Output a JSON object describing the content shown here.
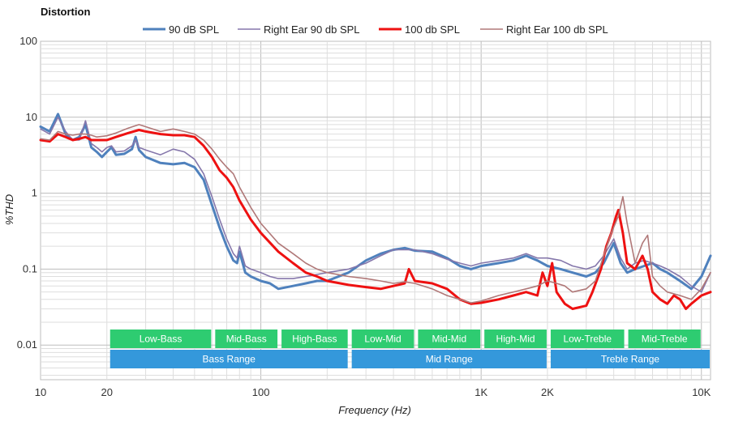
{
  "chart_data": {
    "type": "line",
    "title": "Distortion",
    "xlabel": "Frequency (Hz)",
    "ylabel": "%THD",
    "xscale": "log",
    "yscale": "log",
    "xlim": [
      10,
      11000
    ],
    "ylim": [
      0.0035,
      100
    ],
    "x_ticks": [
      {
        "value": 10,
        "label": "10"
      },
      {
        "value": 20,
        "label": "20"
      },
      {
        "value": 100,
        "label": "100"
      },
      {
        "value": 1000,
        "label": "1K"
      },
      {
        "value": 2000,
        "label": "2K"
      },
      {
        "value": 10000,
        "label": "10K"
      }
    ],
    "y_ticks": [
      {
        "value": 100,
        "label": "100"
      },
      {
        "value": 10,
        "label": "10"
      },
      {
        "value": 1,
        "label": "1"
      },
      {
        "value": 0.1,
        "label": "0.1"
      },
      {
        "value": 0.01,
        "label": "0.01"
      }
    ],
    "grid": true,
    "legend_position": "top-center",
    "series": [
      {
        "name": "90 dB SPL",
        "color": "#4f81bd",
        "width": 3,
        "points": [
          [
            10,
            7.5
          ],
          [
            11,
            6.5
          ],
          [
            12,
            11
          ],
          [
            13,
            6
          ],
          [
            14,
            5
          ],
          [
            15,
            5.5
          ],
          [
            16,
            8
          ],
          [
            17,
            4
          ],
          [
            18,
            3.5
          ],
          [
            19,
            3
          ],
          [
            20,
            3.5
          ],
          [
            21,
            4
          ],
          [
            22,
            3.2
          ],
          [
            24,
            3.3
          ],
          [
            26,
            3.8
          ],
          [
            27,
            5.5
          ],
          [
            28,
            3.7
          ],
          [
            30,
            3.0
          ],
          [
            35,
            2.5
          ],
          [
            40,
            2.4
          ],
          [
            45,
            2.5
          ],
          [
            50,
            2.2
          ],
          [
            55,
            1.5
          ],
          [
            60,
            0.7
          ],
          [
            65,
            0.35
          ],
          [
            70,
            0.2
          ],
          [
            75,
            0.13
          ],
          [
            78,
            0.12
          ],
          [
            80,
            0.17
          ],
          [
            85,
            0.09
          ],
          [
            90,
            0.08
          ],
          [
            100,
            0.07
          ],
          [
            110,
            0.065
          ],
          [
            120,
            0.055
          ],
          [
            140,
            0.06
          ],
          [
            160,
            0.065
          ],
          [
            180,
            0.07
          ],
          [
            200,
            0.07
          ],
          [
            250,
            0.09
          ],
          [
            300,
            0.13
          ],
          [
            350,
            0.16
          ],
          [
            400,
            0.18
          ],
          [
            450,
            0.19
          ],
          [
            500,
            0.175
          ],
          [
            600,
            0.17
          ],
          [
            700,
            0.14
          ],
          [
            800,
            0.11
          ],
          [
            900,
            0.1
          ],
          [
            1000,
            0.11
          ],
          [
            1200,
            0.12
          ],
          [
            1400,
            0.13
          ],
          [
            1600,
            0.15
          ],
          [
            1800,
            0.13
          ],
          [
            2000,
            0.11
          ],
          [
            2300,
            0.1
          ],
          [
            2600,
            0.09
          ],
          [
            3000,
            0.08
          ],
          [
            3300,
            0.09
          ],
          [
            3600,
            0.12
          ],
          [
            4000,
            0.22
          ],
          [
            4300,
            0.12
          ],
          [
            4600,
            0.09
          ],
          [
            5000,
            0.1
          ],
          [
            5500,
            0.11
          ],
          [
            6000,
            0.12
          ],
          [
            6500,
            0.1
          ],
          [
            7000,
            0.09
          ],
          [
            8000,
            0.07
          ],
          [
            9000,
            0.055
          ],
          [
            10000,
            0.08
          ],
          [
            11000,
            0.15
          ]
        ]
      },
      {
        "name": "Right Ear 90 db SPL",
        "color": "#8577ab",
        "width": 1.6,
        "points": [
          [
            10,
            7
          ],
          [
            11,
            6
          ],
          [
            12,
            10
          ],
          [
            13,
            6.5
          ],
          [
            14,
            5
          ],
          [
            15,
            5
          ],
          [
            16,
            9
          ],
          [
            17,
            4.5
          ],
          [
            18,
            4
          ],
          [
            19,
            3.5
          ],
          [
            20,
            4
          ],
          [
            21,
            4.2
          ],
          [
            22,
            3.5
          ],
          [
            24,
            3.6
          ],
          [
            26,
            4.2
          ],
          [
            27,
            5
          ],
          [
            28,
            4
          ],
          [
            30,
            3.7
          ],
          [
            35,
            3.2
          ],
          [
            40,
            3.8
          ],
          [
            45,
            3.5
          ],
          [
            50,
            2.8
          ],
          [
            55,
            1.8
          ],
          [
            60,
            0.9
          ],
          [
            65,
            0.45
          ],
          [
            70,
            0.25
          ],
          [
            75,
            0.16
          ],
          [
            78,
            0.14
          ],
          [
            80,
            0.2
          ],
          [
            85,
            0.11
          ],
          [
            90,
            0.1
          ],
          [
            100,
            0.09
          ],
          [
            110,
            0.08
          ],
          [
            120,
            0.075
          ],
          [
            140,
            0.075
          ],
          [
            160,
            0.08
          ],
          [
            180,
            0.085
          ],
          [
            200,
            0.09
          ],
          [
            250,
            0.1
          ],
          [
            300,
            0.12
          ],
          [
            350,
            0.15
          ],
          [
            400,
            0.18
          ],
          [
            450,
            0.18
          ],
          [
            500,
            0.18
          ],
          [
            600,
            0.16
          ],
          [
            700,
            0.135
          ],
          [
            800,
            0.12
          ],
          [
            900,
            0.11
          ],
          [
            1000,
            0.12
          ],
          [
            1200,
            0.13
          ],
          [
            1400,
            0.14
          ],
          [
            1600,
            0.16
          ],
          [
            1800,
            0.14
          ],
          [
            2000,
            0.14
          ],
          [
            2300,
            0.13
          ],
          [
            2600,
            0.11
          ],
          [
            3000,
            0.1
          ],
          [
            3300,
            0.11
          ],
          [
            3600,
            0.15
          ],
          [
            4000,
            0.25
          ],
          [
            4300,
            0.14
          ],
          [
            4600,
            0.1
          ],
          [
            5000,
            0.12
          ],
          [
            5500,
            0.13
          ],
          [
            6000,
            0.12
          ],
          [
            6500,
            0.11
          ],
          [
            7000,
            0.1
          ],
          [
            8000,
            0.08
          ],
          [
            9000,
            0.06
          ],
          [
            10000,
            0.05
          ],
          [
            11000,
            0.09
          ]
        ]
      },
      {
        "name": "100 db SPL",
        "color": "#ee1111",
        "width": 3,
        "points": [
          [
            10,
            5
          ],
          [
            11,
            4.8
          ],
          [
            12,
            6
          ],
          [
            13,
            5.5
          ],
          [
            14,
            5
          ],
          [
            15,
            5.2
          ],
          [
            16,
            5.5
          ],
          [
            17,
            5
          ],
          [
            18,
            5
          ],
          [
            20,
            5
          ],
          [
            22,
            5.5
          ],
          [
            25,
            6.2
          ],
          [
            28,
            6.8
          ],
          [
            30,
            6.5
          ],
          [
            35,
            6.0
          ],
          [
            40,
            5.8
          ],
          [
            45,
            5.8
          ],
          [
            50,
            5.5
          ],
          [
            55,
            4.2
          ],
          [
            60,
            3.0
          ],
          [
            65,
            2.0
          ],
          [
            70,
            1.6
          ],
          [
            75,
            1.2
          ],
          [
            80,
            0.8
          ],
          [
            90,
            0.45
          ],
          [
            100,
            0.3
          ],
          [
            120,
            0.17
          ],
          [
            140,
            0.12
          ],
          [
            160,
            0.09
          ],
          [
            180,
            0.08
          ],
          [
            200,
            0.07
          ],
          [
            250,
            0.062
          ],
          [
            300,
            0.058
          ],
          [
            350,
            0.055
          ],
          [
            400,
            0.06
          ],
          [
            450,
            0.065
          ],
          [
            470,
            0.1
          ],
          [
            500,
            0.07
          ],
          [
            600,
            0.065
          ],
          [
            700,
            0.055
          ],
          [
            800,
            0.04
          ],
          [
            900,
            0.035
          ],
          [
            1000,
            0.036
          ],
          [
            1200,
            0.04
          ],
          [
            1400,
            0.045
          ],
          [
            1600,
            0.05
          ],
          [
            1800,
            0.045
          ],
          [
            1900,
            0.09
          ],
          [
            2000,
            0.06
          ],
          [
            2100,
            0.12
          ],
          [
            2200,
            0.05
          ],
          [
            2400,
            0.035
          ],
          [
            2600,
            0.03
          ],
          [
            3000,
            0.033
          ],
          [
            3200,
            0.05
          ],
          [
            3500,
            0.1
          ],
          [
            3700,
            0.2
          ],
          [
            3900,
            0.3
          ],
          [
            4100,
            0.5
          ],
          [
            4200,
            0.6
          ],
          [
            4400,
            0.3
          ],
          [
            4600,
            0.12
          ],
          [
            5000,
            0.1
          ],
          [
            5400,
            0.15
          ],
          [
            5700,
            0.1
          ],
          [
            6000,
            0.05
          ],
          [
            6500,
            0.04
          ],
          [
            7000,
            0.035
          ],
          [
            7500,
            0.045
          ],
          [
            8000,
            0.04
          ],
          [
            8500,
            0.03
          ],
          [
            9000,
            0.035
          ],
          [
            10000,
            0.045
          ],
          [
            11000,
            0.05
          ]
        ]
      },
      {
        "name": "Right Ear 100 db SPL",
        "color": "#b07878",
        "width": 1.6,
        "points": [
          [
            10,
            5.2
          ],
          [
            11,
            5
          ],
          [
            12,
            6.5
          ],
          [
            13,
            6
          ],
          [
            14,
            5.8
          ],
          [
            15,
            6
          ],
          [
            16,
            6
          ],
          [
            17,
            5.8
          ],
          [
            18,
            5.5
          ],
          [
            20,
            5.7
          ],
          [
            22,
            6.2
          ],
          [
            25,
            7.2
          ],
          [
            28,
            8
          ],
          [
            30,
            7.5
          ],
          [
            35,
            6.5
          ],
          [
            40,
            7.0
          ],
          [
            45,
            6.5
          ],
          [
            50,
            6.0
          ],
          [
            55,
            5.0
          ],
          [
            60,
            3.8
          ],
          [
            65,
            2.8
          ],
          [
            70,
            2.2
          ],
          [
            75,
            1.8
          ],
          [
            80,
            1.2
          ],
          [
            90,
            0.65
          ],
          [
            100,
            0.4
          ],
          [
            120,
            0.22
          ],
          [
            140,
            0.16
          ],
          [
            160,
            0.12
          ],
          [
            180,
            0.1
          ],
          [
            200,
            0.09
          ],
          [
            250,
            0.08
          ],
          [
            300,
            0.075
          ],
          [
            350,
            0.07
          ],
          [
            400,
            0.065
          ],
          [
            450,
            0.068
          ],
          [
            500,
            0.065
          ],
          [
            600,
            0.055
          ],
          [
            700,
            0.045
          ],
          [
            800,
            0.04
          ],
          [
            900,
            0.036
          ],
          [
            1000,
            0.038
          ],
          [
            1200,
            0.045
          ],
          [
            1400,
            0.05
          ],
          [
            1600,
            0.055
          ],
          [
            1800,
            0.06
          ],
          [
            2000,
            0.07
          ],
          [
            2200,
            0.065
          ],
          [
            2400,
            0.06
          ],
          [
            2600,
            0.05
          ],
          [
            3000,
            0.055
          ],
          [
            3300,
            0.07
          ],
          [
            3600,
            0.15
          ],
          [
            3900,
            0.3
          ],
          [
            4200,
            0.5
          ],
          [
            4400,
            0.9
          ],
          [
            4600,
            0.4
          ],
          [
            5000,
            0.12
          ],
          [
            5400,
            0.22
          ],
          [
            5700,
            0.28
          ],
          [
            6000,
            0.08
          ],
          [
            6500,
            0.06
          ],
          [
            7000,
            0.05
          ],
          [
            8000,
            0.045
          ],
          [
            9000,
            0.04
          ],
          [
            10000,
            0.055
          ],
          [
            11000,
            0.09
          ]
        ]
      }
    ],
    "bands_top": [
      {
        "label": "Low-Bass",
        "start": 20,
        "end": 60
      },
      {
        "label": "Mid-Bass",
        "start": 60,
        "end": 120
      },
      {
        "label": "High-Bass",
        "start": 120,
        "end": 250
      },
      {
        "label": "Low-Mid",
        "start": 250,
        "end": 500
      },
      {
        "label": "Mid-Mid",
        "start": 500,
        "end": 1000
      },
      {
        "label": "High-Mid",
        "start": 1000,
        "end": 2000
      },
      {
        "label": "Low-Treble",
        "start": 2000,
        "end": 4500
      },
      {
        "label": "Mid-Treble",
        "start": 4500,
        "end": 10000
      }
    ],
    "bands_bottom": [
      {
        "label": "Bass Range",
        "start": 20,
        "end": 250
      },
      {
        "label": "Mid Range",
        "start": 250,
        "end": 2000
      },
      {
        "label": "Treble Range",
        "start": 2000,
        "end": 11000
      }
    ],
    "band_colors": {
      "top": "#2ecc71",
      "bottom": "#3498db"
    }
  }
}
